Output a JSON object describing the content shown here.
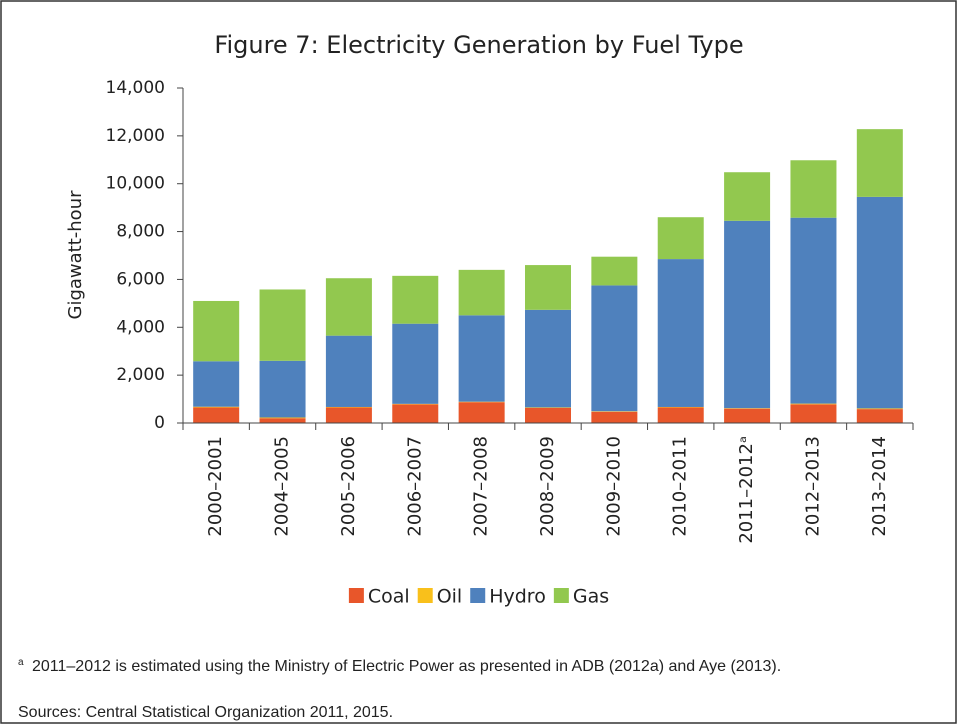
{
  "chart_data": {
    "type": "stacked_bar",
    "title": "Figure 7: Electricity Generation by Fuel Type",
    "y_label": "Gigawatt-hour",
    "categories": [
      "2000–2001",
      "2004–2005",
      "2005–2006",
      "2006–2007",
      "2007–2008",
      "2008–2009",
      "2009–2010",
      "2010–2011",
      "2011–2012ᵃ",
      "2012–2013",
      "2013–2014"
    ],
    "series": [
      {
        "name": "Coal",
        "color": "#e8562a",
        "values": [
          650,
          200,
          650,
          780,
          870,
          630,
          470,
          650,
          600,
          780,
          580
        ]
      },
      {
        "name": "Oil",
        "color": "#f9c01b",
        "values": [
          30,
          30,
          20,
          20,
          20,
          20,
          20,
          20,
          20,
          30,
          30
        ]
      },
      {
        "name": "Hydro",
        "color": "#4f81bd",
        "values": [
          1900,
          2370,
          2980,
          3350,
          3610,
          4080,
          5260,
          6180,
          7830,
          7770,
          8840
        ]
      },
      {
        "name": "Gas",
        "color": "#92c84f",
        "values": [
          2520,
          2980,
          2400,
          2000,
          1900,
          1870,
          1200,
          1750,
          2030,
          2400,
          2830
        ]
      }
    ],
    "ylim": [
      0,
      14000
    ],
    "yticks": [
      0,
      {
        "value": 2000,
        "label": "2,000"
      },
      {
        "value": 4000,
        "label": "4,000"
      },
      {
        "value": 6000,
        "label": "6,000"
      },
      {
        "value": 8000,
        "label": "8,000"
      },
      {
        "value": 10000,
        "label": "10,000"
      },
      {
        "value": 12000,
        "label": "12,000"
      },
      {
        "value": 14000,
        "label": "14,000"
      }
    ],
    "legend": "bottom",
    "footnote": {
      "mark": "a",
      "text": "2011–2012 is estimated using the Ministry of Electric Power as presented in ADB (2012a) and Aye (2013)."
    },
    "sources": "Sources: Central Statistical Organization 2011, 2015."
  }
}
